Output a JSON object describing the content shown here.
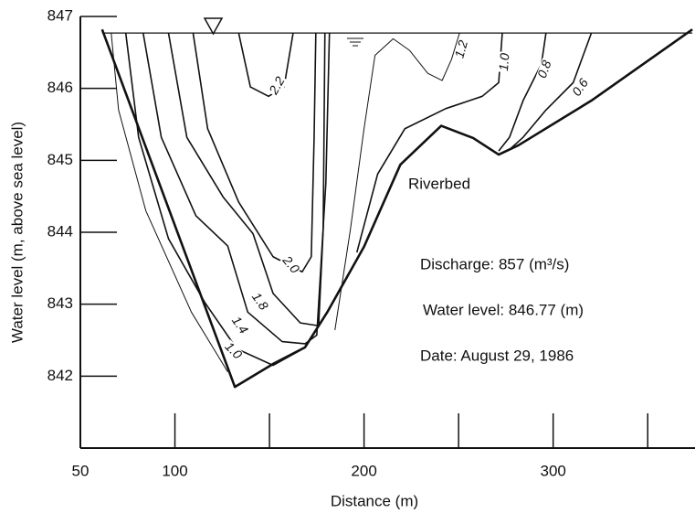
{
  "chart_data": {
    "type": "contour",
    "x_label": "Distance (m)",
    "y_label": "Water level (m, above sea level)",
    "xlim": [
      50,
      375
    ],
    "ylim": [
      841,
      847
    ],
    "xticks": [
      50,
      100,
      200,
      300
    ],
    "xtick_marks": [
      100,
      150,
      200,
      250,
      300,
      350
    ],
    "yticks": [
      847,
      846,
      845,
      844,
      843,
      842
    ],
    "water_level": 846.77,
    "riverbed": {
      "name": "Riverbed",
      "x": [
        61.5,
        131.7,
        151.9,
        168.8,
        180.8,
        200.0,
        219.2,
        240.8,
        257.7,
        271.2,
        281.7,
        320.2,
        373.6
      ],
      "y": [
        846.82,
        841.85,
        842.17,
        842.4,
        842.9,
        843.8,
        844.94,
        845.48,
        845.31,
        845.08,
        845.21,
        845.83,
        846.82
      ]
    },
    "contours": [
      {
        "label": "2.2",
        "x": [
          133.7,
          139.9,
          149.5,
          157.7,
          162.5
        ],
        "y": [
          846.77,
          846.02,
          845.89,
          846.02,
          846.77
        ]
      },
      {
        "label": "2.0",
        "x": [
          109.6,
          117.3,
          133.7,
          151.9,
          167.3,
          172.1,
          173.6,
          174.5
        ],
        "y": [
          846.77,
          845.44,
          844.42,
          843.66,
          843.45,
          843.66,
          845.32,
          846.77
        ]
      },
      {
        "label": "1.8",
        "x": [
          96.6,
          106.3,
          125.5,
          141.3,
          151.9,
          166.3,
          176.0,
          178.4,
          179.3
        ],
        "y": [
          846.77,
          845.32,
          844.49,
          843.98,
          843.15,
          842.74,
          842.7,
          844.04,
          846.77
        ]
      },
      {
        "label": "1.4",
        "x": [
          83.2,
          92.8,
          111.1,
          127.9,
          138.5,
          156.7,
          168.8,
          175.0,
          179.8,
          181.7
        ],
        "y": [
          846.77,
          845.32,
          844.23,
          843.81,
          842.89,
          842.48,
          842.45,
          842.57,
          844.68,
          846.77
        ]
      },
      {
        "label": "1.0",
        "x": [
          74.0,
          80.8,
          96.6,
          115.9,
          132.7,
          151.9,
          166.3
        ],
        "y": [
          846.77,
          845.32,
          843.91,
          843.02,
          842.38,
          842.15,
          842.36
        ]
      },
      {
        "x": [
          66.3,
          70.2,
          84.6,
          108.7,
          127.9
        ],
        "y": [
          846.77,
          845.7,
          844.3,
          842.89,
          842.06
        ]
      },
      {
        "label": "1.2",
        "x": [
          184.6,
          192.8,
          200.0,
          205.8,
          215.4,
          224.0,
          233.7,
          241.3,
          246.2,
          250.5
        ],
        "y": [
          842.64,
          844.04,
          845.44,
          846.46,
          846.69,
          846.53,
          846.21,
          846.11,
          846.4,
          846.77
        ]
      },
      {
        "label": "1.0",
        "x": [
          273.1,
          271.2,
          262.5,
          243.3,
          221.6,
          207.2,
          196.2
        ],
        "y": [
          846.77,
          846.08,
          845.89,
          845.72,
          845.44,
          844.81,
          843.72
        ]
      },
      {
        "label": "0.8",
        "x": [
          296.2,
          293.8,
          284.1,
          276.9,
          271.2
        ],
        "y": [
          846.77,
          846.34,
          845.83,
          845.32,
          845.13
        ]
      },
      {
        "label": "0.6",
        "x": [
          320.2,
          310.6,
          296.2,
          284.1,
          276.9
        ],
        "y": [
          846.77,
          846.08,
          845.7,
          845.32,
          845.15
        ]
      }
    ],
    "annotations": [
      "Discharge: 857 (m³/s)",
      "Water level: 846.77 (m)",
      "Date: August 29, 1986"
    ]
  }
}
